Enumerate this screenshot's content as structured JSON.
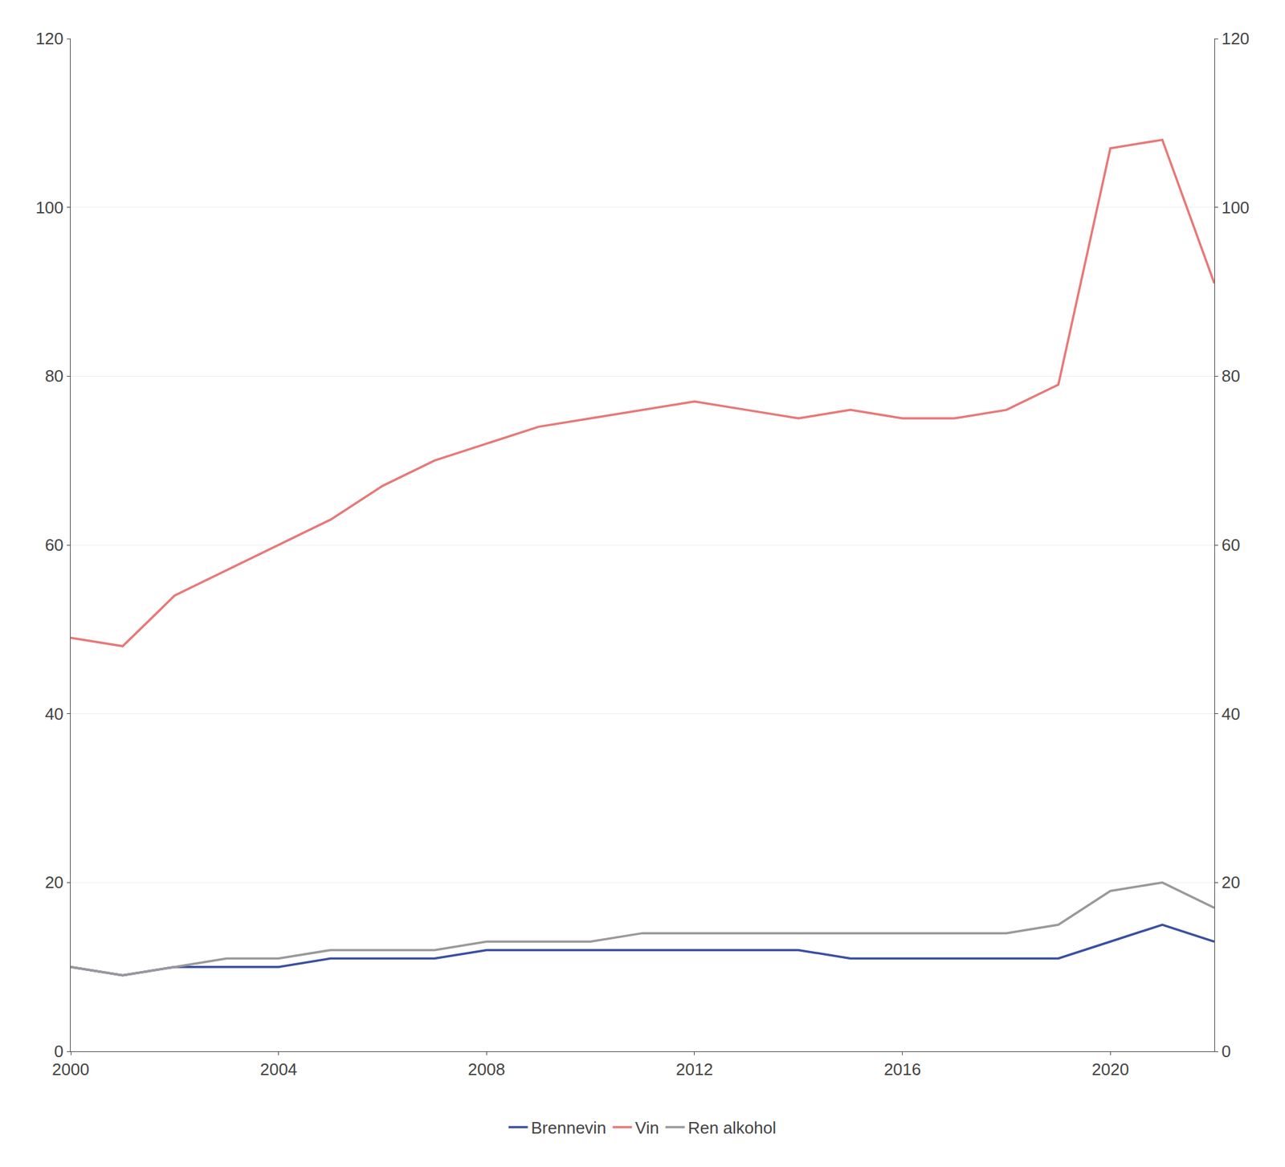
{
  "chart_data": {
    "type": "line",
    "x": [
      2000,
      2001,
      2002,
      2003,
      2004,
      2005,
      2006,
      2007,
      2008,
      2009,
      2010,
      2011,
      2012,
      2013,
      2014,
      2015,
      2016,
      2017,
      2018,
      2019,
      2020,
      2021,
      2022
    ],
    "series": [
      {
        "name": "Brennevin",
        "color": "#3a4fa0",
        "values": [
          10,
          9,
          10,
          10,
          10,
          11,
          11,
          11,
          12,
          12,
          12,
          12,
          12,
          12,
          12,
          11,
          11,
          11,
          11,
          11,
          13,
          15,
          13
        ]
      },
      {
        "name": "Vin",
        "color": "#e87878",
        "values": [
          49,
          48,
          54,
          57,
          60,
          63,
          67,
          70,
          72,
          74,
          75,
          76,
          77,
          76,
          75,
          76,
          75,
          75,
          76,
          79,
          107,
          108,
          91
        ]
      },
      {
        "name": "Ren alkohol",
        "color": "#999999",
        "values": [
          10,
          9,
          10,
          11,
          11,
          12,
          12,
          12,
          13,
          13,
          13,
          14,
          14,
          14,
          14,
          14,
          14,
          14,
          14,
          15,
          19,
          20,
          17
        ]
      }
    ],
    "xlim": [
      2000,
      2022
    ],
    "xticks": [
      2000,
      2004,
      2008,
      2012,
      2016,
      2020
    ],
    "ylim": [
      0,
      120
    ],
    "yticks": [
      0,
      20,
      40,
      60,
      80,
      100,
      120
    ],
    "y2lim": [
      0,
      120
    ],
    "y2ticks": [
      0,
      20,
      40,
      60,
      80,
      100,
      120
    ],
    "grid": "y",
    "legend": "bottom"
  }
}
